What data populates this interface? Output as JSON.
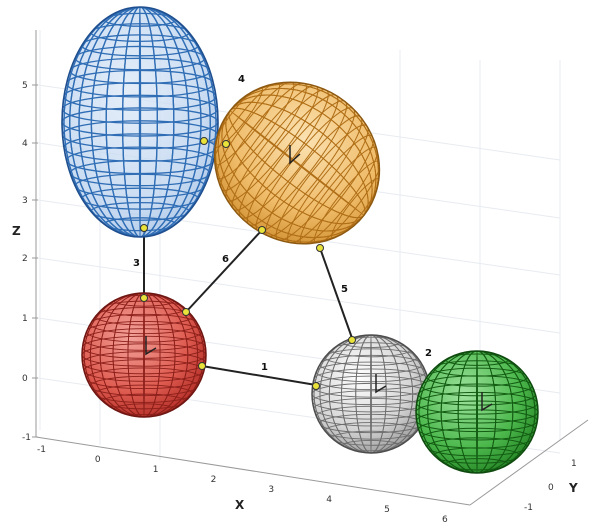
{
  "axes": {
    "x_label": "X",
    "y_label": "Y",
    "z_label": "Z",
    "x_ticks": [
      "-1",
      "0",
      "1",
      "2",
      "3",
      "4",
      "5",
      "6"
    ],
    "y_ticks": [
      "-1",
      "0",
      "1"
    ],
    "z_ticks": [
      "-1",
      "0",
      "1",
      "2",
      "3",
      "4",
      "5"
    ]
  },
  "bodies": [
    {
      "id": "blue-ellipsoid",
      "shape": "ellipsoid",
      "color": "#2f6db5"
    },
    {
      "id": "orange-ellipsoid",
      "shape": "rotated-ellipsoid",
      "color": "#d9932f"
    },
    {
      "id": "red-sphere",
      "shape": "sphere",
      "color": "#c23a32"
    },
    {
      "id": "gray-sphere",
      "shape": "sphere",
      "color": "#9a9a9a"
    },
    {
      "id": "green-sphere",
      "shape": "sphere",
      "color": "#2e9a2e"
    }
  ],
  "links": [
    {
      "label": "1",
      "from": "red-sphere",
      "to": "gray-sphere"
    },
    {
      "label": "2",
      "from": "gray-sphere",
      "to": "green-sphere"
    },
    {
      "label": "3",
      "from": "blue-ellipsoid",
      "to": "red-sphere"
    },
    {
      "label": "4",
      "from": "blue-ellipsoid",
      "to": "orange-ellipsoid"
    },
    {
      "label": "5",
      "from": "orange-ellipsoid",
      "to": "gray-sphere"
    },
    {
      "label": "6",
      "from": "orange-ellipsoid",
      "to": "red-sphere"
    }
  ],
  "anchor_color": "#e8e23a"
}
